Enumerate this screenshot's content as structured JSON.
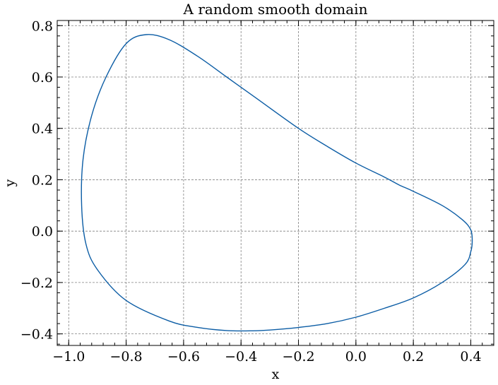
{
  "chart_data": {
    "type": "line",
    "title": "A random smooth domain",
    "xlabel": "x",
    "ylabel": "y",
    "xlim": [
      -1.04,
      0.48
    ],
    "ylim": [
      -0.445,
      0.82
    ],
    "xticks": [
      -1.0,
      -0.8,
      -0.6,
      -0.4,
      -0.2,
      0.0,
      0.2,
      0.4
    ],
    "yticks": [
      -0.4,
      -0.2,
      0.0,
      0.2,
      0.4,
      0.6,
      0.8
    ],
    "xtick_labels": [
      "−1.0",
      "−0.8",
      "−0.6",
      "−0.4",
      "−0.2",
      "0.0",
      "0.2",
      "0.4"
    ],
    "ytick_labels": [
      "−0.4",
      "−0.2",
      "0.0",
      "0.2",
      "0.4",
      "0.6",
      "0.8"
    ],
    "grid": true,
    "closed": true,
    "line_color": "#0c5da5",
    "x": [
      0.405,
      0.4,
      0.38,
      0.3,
      0.2,
      0.1,
      0.0,
      -0.1,
      -0.2,
      -0.3,
      -0.36,
      -0.45,
      -0.55,
      -0.65,
      -0.8,
      -0.9,
      -0.94,
      -0.955,
      -0.95,
      -0.92,
      -0.87,
      -0.8,
      -0.73,
      -0.65,
      -0.55,
      -0.45,
      -0.35,
      -0.2,
      -0.1,
      0.0,
      0.1,
      0.15,
      0.2,
      0.3,
      0.37,
      0.4,
      0.405
    ],
    "y": [
      -0.04,
      -0.08,
      -0.13,
      -0.2,
      -0.26,
      -0.3,
      -0.335,
      -0.36,
      -0.375,
      -0.385,
      -0.388,
      -0.387,
      -0.375,
      -0.35,
      -0.27,
      -0.15,
      -0.05,
      0.1,
      0.28,
      0.45,
      0.6,
      0.73,
      0.765,
      0.745,
      0.68,
      0.6,
      0.52,
      0.4,
      0.33,
      0.265,
      0.21,
      0.18,
      0.155,
      0.1,
      0.045,
      0.005,
      -0.04
    ]
  }
}
